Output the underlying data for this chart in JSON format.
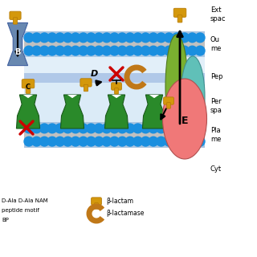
{
  "bg_color": "#ffffff",
  "blue_bead_color": "#1a8fdf",
  "gray_fill": "#c0c0c0",
  "outer_mem_fill": "#a8c4e0",
  "peptido_color": "#b0c8e8",
  "periplasm_color": "#b8d8f0",
  "porin_color": "#6888b0",
  "pbp_color": "#2a8a2a",
  "pbp_edge": "#1a5a1a",
  "beta_lactam_top": "#d4980c",
  "beta_lactam_stem": "#b87c08",
  "beta_lactamase_color": "#c07818",
  "red_x_color": "#cc0000",
  "E_pink": "#f07878",
  "E_green": "#7ab030",
  "E_cyan": "#60c0b8",
  "arrow_color": "#000000",
  "label_B": "B",
  "label_C": "C",
  "label_D": "D",
  "label_E": "E",
  "side_labels": [
    "Ext\nspac",
    "Ou\nme",
    "Pep",
    "Per\nspa",
    "Pla\nme",
    "Cyt"
  ],
  "legend_left1": "D-Ala D-Ala NAM",
  "legend_left2": "peptide motif",
  "legend_left3": "BP",
  "legend_beta_lactam": "β-lactam",
  "legend_beta_lactamase": "β-lactamase"
}
